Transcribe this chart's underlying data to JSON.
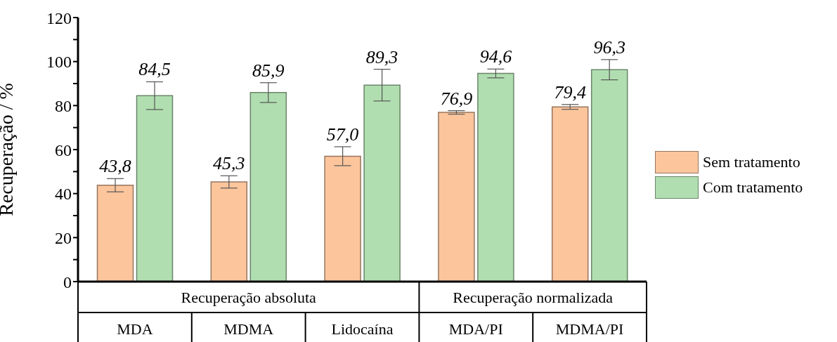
{
  "chart_data": {
    "type": "bar",
    "ylabel": "Recuperação / %",
    "categories": [
      "MDA",
      "MDMA",
      "Lidocaína",
      "MDA/PI",
      "MDMA/PI"
    ],
    "series": [
      {
        "name": "Sem tratamento",
        "color": "#fcc59c",
        "values": [
          43.8,
          45.3,
          57.0,
          76.9,
          79.4
        ],
        "value_labels": [
          "43,8",
          "45,3",
          "57,0",
          "76,9",
          "79,4"
        ],
        "errors": [
          3.0,
          2.8,
          4.3,
          0.8,
          1.1
        ]
      },
      {
        "name": "Com tratamento",
        "color": "#b0deb0",
        "values": [
          84.5,
          85.9,
          89.3,
          94.6,
          96.3
        ],
        "value_labels": [
          "84,5",
          "85,9",
          "89,3",
          "94,6",
          "96,3"
        ],
        "errors": [
          6.3,
          4.5,
          7.2,
          2.0,
          4.6
        ]
      }
    ],
    "ylim": [
      0,
      120
    ],
    "yticks": [
      0,
      {
        "value": 10,
        "label": null
      },
      20,
      {
        "value": 30,
        "label": null
      },
      40,
      {
        "value": 50,
        "label": null
      },
      60,
      {
        "value": 70,
        "label": null
      },
      80,
      {
        "value": 90,
        "label": null
      },
      100,
      {
        "value": 110,
        "label": null
      },
      120
    ],
    "legend": "right",
    "grid": false,
    "annotations": [
      "Recuperação absoluta",
      "Recuperação normalizada"
    ]
  }
}
